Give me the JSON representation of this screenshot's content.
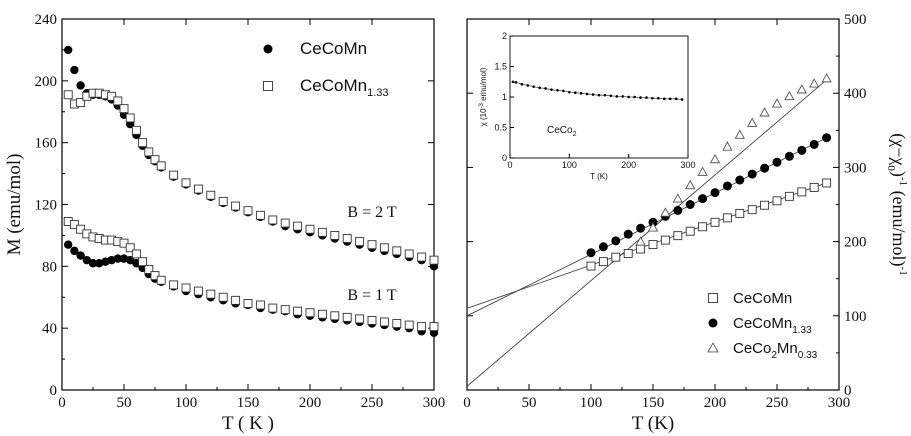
{
  "chart_data": [
    {
      "type": "scatter",
      "xlabel": "T ( K )",
      "ylabel": "M (emu/mol)",
      "xlim": [
        0,
        300
      ],
      "ylim": [
        0,
        240
      ],
      "xticks": [
        "0",
        "50",
        "100",
        "150",
        "200",
        "250",
        "300"
      ],
      "yticks": [
        "0",
        "40",
        "80",
        "120",
        "160",
        "200",
        "240"
      ],
      "legend_position": "top-right",
      "annotations": [
        "B = 2 T",
        "B = 1 T"
      ],
      "series": [
        {
          "name": "CeCoMn",
          "name_sub": "",
          "marker": "filled-circle",
          "field": "B = 2 T",
          "x": [
            5,
            10,
            15,
            20,
            25,
            30,
            35,
            40,
            45,
            50,
            55,
            60,
            65,
            70,
            75,
            80,
            90,
            100,
            110,
            120,
            130,
            140,
            150,
            160,
            170,
            180,
            190,
            200,
            210,
            220,
            230,
            240,
            250,
            260,
            270,
            280,
            290,
            300
          ],
          "y": [
            220,
            207,
            197,
            192,
            191,
            191,
            190,
            188,
            184,
            178,
            172,
            165,
            158,
            152,
            148,
            144,
            138,
            133,
            129,
            125,
            121,
            118,
            115,
            112,
            109,
            106,
            104,
            102,
            100,
            98,
            96,
            94,
            92,
            90,
            88,
            86,
            84,
            80
          ]
        },
        {
          "name": "CeCoMn",
          "name_sub": "1.33",
          "marker": "open-square",
          "field": "B = 2 T",
          "x": [
            5,
            10,
            15,
            20,
            25,
            30,
            35,
            40,
            45,
            50,
            55,
            60,
            65,
            70,
            75,
            80,
            90,
            100,
            110,
            120,
            130,
            140,
            150,
            160,
            170,
            180,
            190,
            200,
            210,
            220,
            230,
            240,
            250,
            260,
            270,
            280,
            290,
            300
          ],
          "y": [
            191,
            185,
            186,
            190,
            192,
            192,
            191,
            190,
            187,
            182,
            176,
            168,
            160,
            154,
            149,
            145,
            139,
            134,
            130,
            126,
            122,
            119,
            116,
            113,
            110,
            108,
            106,
            104,
            102,
            100,
            98,
            96,
            94,
            92,
            90,
            88,
            86,
            84
          ]
        },
        {
          "name": "CeCoMn",
          "name_sub": "",
          "marker": "filled-circle",
          "field": "B = 1 T",
          "x": [
            5,
            10,
            15,
            20,
            25,
            30,
            35,
            40,
            45,
            50,
            55,
            60,
            65,
            70,
            75,
            80,
            90,
            100,
            110,
            120,
            130,
            140,
            150,
            160,
            170,
            180,
            190,
            200,
            210,
            220,
            230,
            240,
            250,
            260,
            270,
            280,
            290,
            300
          ],
          "y": [
            94,
            90,
            87,
            84,
            82,
            82,
            83,
            84,
            85,
            85,
            84,
            82,
            79,
            75,
            72,
            70,
            67,
            64,
            62,
            60,
            58,
            56,
            55,
            53,
            52,
            51,
            49,
            48,
            47,
            46,
            45,
            44,
            43,
            42,
            41,
            40,
            38,
            37
          ]
        },
        {
          "name": "CeCoMn",
          "name_sub": "1.33",
          "marker": "open-square",
          "field": "B = 1 T",
          "x": [
            5,
            10,
            15,
            20,
            25,
            30,
            35,
            40,
            45,
            50,
            55,
            60,
            65,
            70,
            75,
            80,
            90,
            100,
            110,
            120,
            130,
            140,
            150,
            160,
            170,
            180,
            190,
            200,
            210,
            220,
            230,
            240,
            250,
            260,
            270,
            280,
            290,
            300
          ],
          "y": [
            109,
            107,
            104,
            101,
            99,
            98,
            97,
            97,
            96,
            95,
            92,
            88,
            83,
            78,
            74,
            71,
            68,
            66,
            64,
            62,
            60,
            58,
            56,
            55,
            53,
            52,
            51,
            50,
            49,
            48,
            47,
            46,
            45,
            44,
            43,
            42,
            41,
            41
          ]
        }
      ]
    },
    {
      "type": "scatter",
      "xlabel": "T (K)",
      "ylabel": "(χ−χ",
      "ylabel_sub": "0",
      "ylabel_tail": ")",
      "ylabel_sup": "-1",
      "ylabel_unit": " (emu/mol)",
      "ylabel_unit_sup": "-1",
      "xlim": [
        0,
        300
      ],
      "ylim": [
        0,
        500
      ],
      "xticks": [
        "0",
        "50",
        "100",
        "150",
        "200",
        "250",
        "300"
      ],
      "yticks": [
        "0",
        "100",
        "200",
        "300",
        "400",
        "500"
      ],
      "y_axis_side": "right",
      "legend_position": "bottom-right",
      "series": [
        {
          "name": "CeCoMn",
          "name_sub": "",
          "name_tail": "",
          "marker": "open-square",
          "x": [
            100,
            110,
            120,
            130,
            140,
            150,
            160,
            170,
            180,
            190,
            200,
            210,
            220,
            230,
            240,
            250,
            260,
            270,
            280,
            290
          ],
          "y": [
            167,
            173,
            179,
            184,
            190,
            196,
            202,
            208,
            214,
            220,
            226,
            232,
            238,
            243,
            249,
            255,
            261,
            267,
            273,
            279
          ]
        },
        {
          "name": "CeCoMn",
          "name_sub": "1.33",
          "name_tail": "",
          "marker": "filled-circle",
          "x": [
            100,
            110,
            120,
            130,
            140,
            150,
            160,
            170,
            180,
            190,
            200,
            210,
            220,
            230,
            240,
            250,
            260,
            270,
            280,
            290
          ],
          "y": [
            185,
            193,
            201,
            210,
            218,
            226,
            234,
            242,
            250,
            258,
            266,
            275,
            283,
            291,
            299,
            307,
            315,
            323,
            331,
            340
          ]
        },
        {
          "name": "CeCo",
          "name_sub": "2",
          "name_tail": "Mn",
          "name_tail_sub": "0.33",
          "marker": "open-triangle",
          "x": [
            140,
            150,
            160,
            170,
            180,
            190,
            200,
            210,
            220,
            230,
            240,
            250,
            260,
            270,
            280,
            290
          ],
          "y": [
            200,
            219,
            239,
            258,
            276,
            294,
            311,
            328,
            344,
            360,
            374,
            386,
            396,
            405,
            413,
            420
          ]
        }
      ],
      "fit_lines": [
        {
          "for": "CeCoMn",
          "x": [
            0,
            290
          ],
          "y": [
            110,
            279
          ]
        },
        {
          "for": "CeCoMn 1.33",
          "x": [
            0,
            290
          ],
          "y": [
            100,
            340
          ]
        },
        {
          "for": "CeCo2Mn0.33",
          "x": [
            0,
            290
          ],
          "y": [
            5,
            418
          ]
        }
      ],
      "inset": {
        "type": "scatter",
        "label": "CeCo",
        "label_sub": "2",
        "xlabel": "T (K)",
        "ylabel": "χ (10",
        "ylabel_sup": "-3",
        "ylabel_tail": " emu/mol)",
        "xlim": [
          0,
          300
        ],
        "ylim": [
          0,
          2
        ],
        "xticks": [
          "0",
          "100",
          "200",
          "300"
        ],
        "yticks": [
          "0",
          "0.5",
          "1",
          "1.5",
          "2"
        ],
        "x": [
          5,
          10,
          20,
          30,
          40,
          50,
          60,
          70,
          80,
          90,
          100,
          110,
          120,
          130,
          140,
          150,
          160,
          170,
          180,
          190,
          200,
          210,
          220,
          230,
          240,
          250,
          260,
          270,
          280,
          290
        ],
        "y": [
          1.25,
          1.24,
          1.21,
          1.19,
          1.17,
          1.15,
          1.14,
          1.12,
          1.11,
          1.1,
          1.08,
          1.07,
          1.06,
          1.05,
          1.04,
          1.03,
          1.03,
          1.02,
          1.01,
          1.01,
          1.0,
          1.0,
          0.99,
          0.99,
          0.98,
          0.98,
          0.97,
          0.97,
          0.97,
          0.96
        ]
      }
    }
  ]
}
